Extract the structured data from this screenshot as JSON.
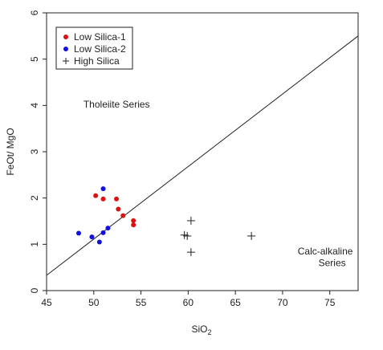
{
  "chart_data": {
    "type": "scatter",
    "xlabel": "SiO",
    "xlabel_subscript": "2",
    "ylabel": "FeOt/ MgO",
    "xlim": [
      45,
      78
    ],
    "ylim": [
      0,
      6
    ],
    "x_ticks": [
      45,
      50,
      55,
      60,
      65,
      70,
      75
    ],
    "y_ticks": [
      0,
      1,
      2,
      3,
      4,
      5,
      6
    ],
    "grid": false,
    "legend_position": "top-left",
    "series": [
      {
        "name": "Low Silica-1",
        "marker": "dot",
        "color": "#dd1111",
        "points": [
          {
            "x": 50.2,
            "y": 2.05
          },
          {
            "x": 51.0,
            "y": 1.98
          },
          {
            "x": 52.4,
            "y": 1.98
          },
          {
            "x": 52.6,
            "y": 1.76
          },
          {
            "x": 53.1,
            "y": 1.62
          },
          {
            "x": 54.2,
            "y": 1.51
          },
          {
            "x": 54.2,
            "y": 1.42
          }
        ]
      },
      {
        "name": "Low Silica-2",
        "marker": "dot",
        "color": "#1111dd",
        "points": [
          {
            "x": 48.4,
            "y": 1.24
          },
          {
            "x": 49.8,
            "y": 1.16
          },
          {
            "x": 50.6,
            "y": 1.05
          },
          {
            "x": 51.0,
            "y": 1.25
          },
          {
            "x": 51.5,
            "y": 1.35
          },
          {
            "x": 51.0,
            "y": 2.2
          }
        ]
      },
      {
        "name": "High Silica",
        "marker": "plus",
        "color": "#222222",
        "points": [
          {
            "x": 59.6,
            "y": 1.2
          },
          {
            "x": 59.9,
            "y": 1.18
          },
          {
            "x": 60.3,
            "y": 1.51
          },
          {
            "x": 60.3,
            "y": 0.83
          },
          {
            "x": 66.7,
            "y": 1.18
          }
        ]
      }
    ],
    "boundary_line": {
      "x1": 45,
      "y1": 0.33,
      "x2": 78,
      "y2": 5.5
    },
    "annotations": [
      {
        "text": "Tholeiite Series",
        "x": 48.9,
        "y": 3.95
      },
      {
        "text": "Calc-alkaline",
        "x": 71.6,
        "y": 0.78
      },
      {
        "text": "Series",
        "x": 73.8,
        "y": 0.53
      }
    ]
  }
}
